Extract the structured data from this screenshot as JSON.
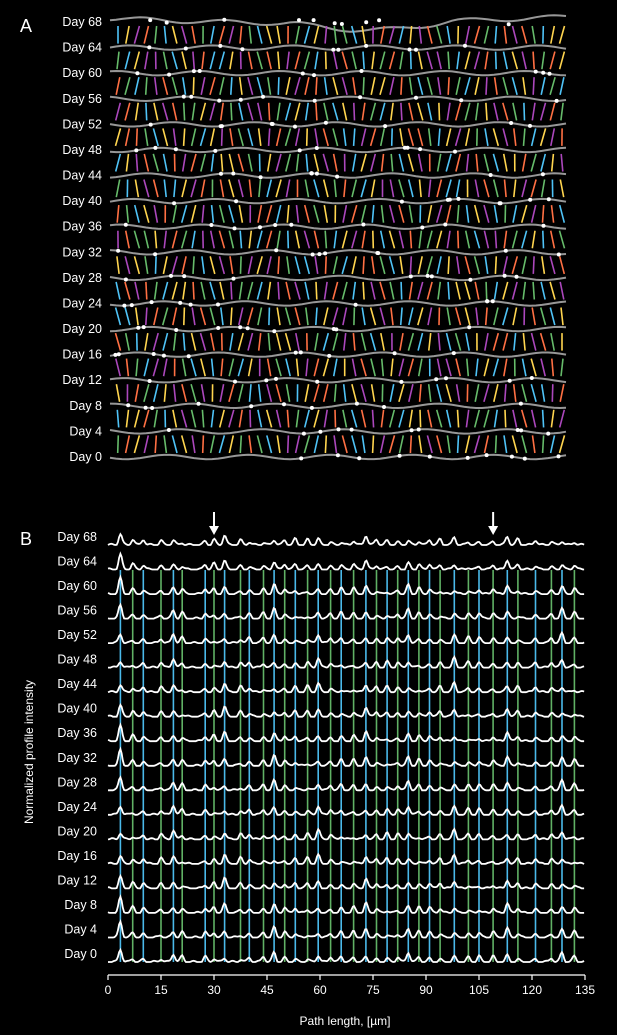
{
  "panels": {
    "a": "A",
    "b": "B"
  },
  "colors": {
    "background": "#000000",
    "trace": "#ffffff",
    "marker_palette": [
      "#4fc3f7",
      "#ff7043",
      "#ffd54f",
      "#66bb6a",
      "#ab47bc",
      "#e53935"
    ]
  },
  "chart_data": [
    {
      "type": "image",
      "panel": "A",
      "description_labels": [
        "Day 68",
        "Day 64",
        "Day 60",
        "Day 56",
        "Day 52",
        "Day 48",
        "Day 44",
        "Day 40",
        "Day 36",
        "Day 32",
        "Day 28",
        "Day 24",
        "Day 20",
        "Day 16",
        "Day 12",
        "Day 8",
        "Day 4",
        "Day 0"
      ]
    },
    {
      "type": "line",
      "panel": "B",
      "xlabel": "Path length, [µm]",
      "ylabel": "Normalized profile intensity",
      "xlim": [
        0,
        135
      ],
      "xticks": [
        "0",
        "15",
        "30",
        "45",
        "60",
        "75",
        "90",
        "105",
        "120",
        "135"
      ],
      "series_names": [
        "Day 68",
        "Day 64",
        "Day 60",
        "Day 56",
        "Day 52",
        "Day 48",
        "Day 44",
        "Day 40",
        "Day 36",
        "Day 32",
        "Day 28",
        "Day 24",
        "Day 20",
        "Day 16",
        "Day 12",
        "Day 8",
        "Day 4",
        "Day 0"
      ],
      "peak_positions_um": [
        3.5,
        7,
        10,
        15,
        18.5,
        21,
        27.5,
        30,
        33,
        37.5,
        40,
        44,
        47,
        50,
        53,
        56.5,
        59.5,
        63,
        66,
        69.5,
        73,
        76,
        79,
        82,
        85,
        88,
        91,
        94,
        98,
        102,
        105,
        109,
        113,
        116,
        121,
        125.5,
        128.5,
        132
      ],
      "arrows_um": [
        30,
        109
      ],
      "grid": false,
      "legend": "none"
    }
  ]
}
